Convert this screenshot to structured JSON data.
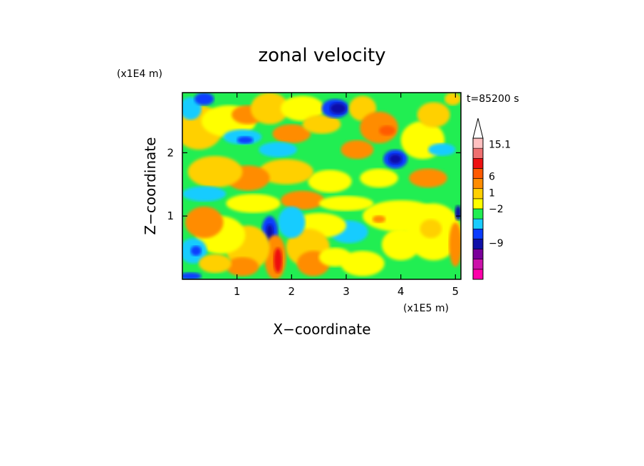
{
  "chart_data": {
    "type": "heatmap",
    "title": "zonal velocity",
    "xlabel": "X−coordinate",
    "ylabel": "Z−coordinate",
    "x_unit": "(x1E5 m)",
    "y_unit": "(x1E4 m)",
    "time_label": "t=85200 s",
    "xlim": [
      0,
      5.1
    ],
    "ylim": [
      0,
      2.95
    ],
    "x_ticks": [
      {
        "value": 1,
        "label": "1"
      },
      {
        "value": 2,
        "label": "2"
      },
      {
        "value": 3,
        "label": "3"
      },
      {
        "value": 4,
        "label": "4"
      },
      {
        "value": 5,
        "label": "5"
      }
    ],
    "y_ticks": [
      {
        "value": 1,
        "label": "1"
      },
      {
        "value": 2,
        "label": "2"
      }
    ],
    "colorbar": {
      "levels": [
        {
          "color": "#ff00aa"
        },
        {
          "color": "#cc11aa"
        },
        {
          "color": "#7a009a"
        },
        {
          "color": "#1010a8"
        },
        {
          "color": "#0a3cff"
        },
        {
          "color": "#19ccff"
        },
        {
          "color": "#21ee52"
        },
        {
          "color": "#ffff00"
        },
        {
          "color": "#ffd000"
        },
        {
          "color": "#ff8c00"
        },
        {
          "color": "#ff5a00"
        },
        {
          "color": "#ee1111"
        },
        {
          "color": "#f07070"
        },
        {
          "color": "#ffc0c0"
        }
      ],
      "labels": [
        {
          "text": "15.1",
          "level": 13.4
        },
        {
          "text": "6",
          "level": 10.2
        },
        {
          "text": "1",
          "level": 8.6
        },
        {
          "text": "−2",
          "level": 7.0
        },
        {
          "text": "−9",
          "level": 3.6
        }
      ]
    },
    "field": {
      "background_color": "#21ee52",
      "blobs": [
        {
          "x": 0.3,
          "z": 2.4,
          "rx": 0.45,
          "rz": 0.35,
          "color": "#ffd000"
        },
        {
          "x": 0.15,
          "z": 2.7,
          "rx": 0.2,
          "rz": 0.18,
          "color": "#19ccff"
        },
        {
          "x": 0.4,
          "z": 2.85,
          "rx": 0.18,
          "rz": 0.1,
          "color": "#0a3cff"
        },
        {
          "x": 0.85,
          "z": 2.5,
          "rx": 0.5,
          "rz": 0.25,
          "color": "#ffff00"
        },
        {
          "x": 1.2,
          "z": 2.6,
          "rx": 0.3,
          "rz": 0.15,
          "color": "#ff8c00"
        },
        {
          "x": 1.1,
          "z": 2.25,
          "rx": 0.35,
          "rz": 0.12,
          "color": "#19ccff"
        },
        {
          "x": 1.15,
          "z": 2.2,
          "rx": 0.15,
          "rz": 0.06,
          "color": "#0a3cff"
        },
        {
          "x": 1.6,
          "z": 2.7,
          "rx": 0.35,
          "rz": 0.25,
          "color": "#ffd000"
        },
        {
          "x": 2.2,
          "z": 2.7,
          "rx": 0.4,
          "rz": 0.2,
          "color": "#ffff00"
        },
        {
          "x": 2.0,
          "z": 2.3,
          "rx": 0.35,
          "rz": 0.15,
          "color": "#ff8c00"
        },
        {
          "x": 1.75,
          "z": 2.05,
          "rx": 0.35,
          "rz": 0.12,
          "color": "#19ccff"
        },
        {
          "x": 2.55,
          "z": 2.45,
          "rx": 0.35,
          "rz": 0.15,
          "color": "#ffd000"
        },
        {
          "x": 2.8,
          "z": 2.7,
          "rx": 0.25,
          "rz": 0.15,
          "color": "#0a3cff"
        },
        {
          "x": 2.85,
          "z": 2.7,
          "rx": 0.15,
          "rz": 0.09,
          "color": "#1010a8"
        },
        {
          "x": 3.3,
          "z": 2.7,
          "rx": 0.25,
          "rz": 0.2,
          "color": "#ffd000"
        },
        {
          "x": 3.6,
          "z": 2.4,
          "rx": 0.35,
          "rz": 0.25,
          "color": "#ff8c00"
        },
        {
          "x": 3.75,
          "z": 2.35,
          "rx": 0.15,
          "rz": 0.08,
          "color": "#ff5a00"
        },
        {
          "x": 3.2,
          "z": 2.05,
          "rx": 0.3,
          "rz": 0.15,
          "color": "#ff8c00"
        },
        {
          "x": 3.9,
          "z": 1.9,
          "rx": 0.22,
          "rz": 0.15,
          "color": "#0a3cff"
        },
        {
          "x": 3.9,
          "z": 1.9,
          "rx": 0.12,
          "rz": 0.08,
          "color": "#1010a8"
        },
        {
          "x": 4.4,
          "z": 2.2,
          "rx": 0.4,
          "rz": 0.3,
          "color": "#ffff00"
        },
        {
          "x": 4.6,
          "z": 2.6,
          "rx": 0.3,
          "rz": 0.2,
          "color": "#ffd000"
        },
        {
          "x": 4.75,
          "z": 2.05,
          "rx": 0.25,
          "rz": 0.1,
          "color": "#19ccff"
        },
        {
          "x": 4.5,
          "z": 1.6,
          "rx": 0.35,
          "rz": 0.15,
          "color": "#ff8c00"
        },
        {
          "x": 3.6,
          "z": 1.6,
          "rx": 0.35,
          "rz": 0.15,
          "color": "#ffff00"
        },
        {
          "x": 2.7,
          "z": 1.55,
          "rx": 0.4,
          "rz": 0.18,
          "color": "#ffff00"
        },
        {
          "x": 1.9,
          "z": 1.7,
          "rx": 0.5,
          "rz": 0.2,
          "color": "#ffd000"
        },
        {
          "x": 1.2,
          "z": 1.6,
          "rx": 0.4,
          "rz": 0.2,
          "color": "#ff8c00"
        },
        {
          "x": 0.6,
          "z": 1.7,
          "rx": 0.5,
          "rz": 0.25,
          "color": "#ffd000"
        },
        {
          "x": 0.4,
          "z": 1.35,
          "rx": 0.4,
          "rz": 0.12,
          "color": "#19ccff"
        },
        {
          "x": 1.3,
          "z": 1.2,
          "rx": 0.5,
          "rz": 0.15,
          "color": "#ffff00"
        },
        {
          "x": 2.2,
          "z": 1.25,
          "rx": 0.4,
          "rz": 0.15,
          "color": "#ff8c00"
        },
        {
          "x": 3.0,
          "z": 1.2,
          "rx": 0.5,
          "rz": 0.12,
          "color": "#ffff00"
        },
        {
          "x": 4.0,
          "z": 1.0,
          "rx": 0.7,
          "rz": 0.25,
          "color": "#ffff00"
        },
        {
          "x": 4.6,
          "z": 0.75,
          "rx": 0.5,
          "rz": 0.45,
          "color": "#ffff00"
        },
        {
          "x": 4.55,
          "z": 0.8,
          "rx": 0.2,
          "rz": 0.15,
          "color": "#ffd000"
        },
        {
          "x": 4.0,
          "z": 0.55,
          "rx": 0.35,
          "rz": 0.25,
          "color": "#ffff00"
        },
        {
          "x": 3.3,
          "z": 0.25,
          "rx": 0.4,
          "rz": 0.2,
          "color": "#ffff00"
        },
        {
          "x": 3.6,
          "z": 0.95,
          "rx": 0.12,
          "rz": 0.06,
          "color": "#ff8c00"
        },
        {
          "x": 3.05,
          "z": 0.75,
          "rx": 0.35,
          "rz": 0.18,
          "color": "#19ccff"
        },
        {
          "x": 2.5,
          "z": 0.85,
          "rx": 0.5,
          "rz": 0.2,
          "color": "#ffff00"
        },
        {
          "x": 2.3,
          "z": 0.5,
          "rx": 0.4,
          "rz": 0.3,
          "color": "#ffd000"
        },
        {
          "x": 2.4,
          "z": 0.25,
          "rx": 0.3,
          "rz": 0.2,
          "color": "#ff8c00"
        },
        {
          "x": 2.8,
          "z": 0.35,
          "rx": 0.3,
          "rz": 0.15,
          "color": "#ffff00"
        },
        {
          "x": 2.0,
          "z": 0.9,
          "rx": 0.25,
          "rz": 0.25,
          "color": "#19ccff"
        },
        {
          "x": 1.6,
          "z": 0.75,
          "rx": 0.15,
          "rz": 0.25,
          "color": "#0a3cff"
        },
        {
          "x": 1.6,
          "z": 0.72,
          "rx": 0.07,
          "rz": 0.15,
          "color": "#1010a8"
        },
        {
          "x": 1.7,
          "z": 0.35,
          "rx": 0.2,
          "rz": 0.35,
          "color": "#ff8c00"
        },
        {
          "x": 1.75,
          "z": 0.3,
          "rx": 0.08,
          "rz": 0.2,
          "color": "#ee1111"
        },
        {
          "x": 1.2,
          "z": 0.5,
          "rx": 0.4,
          "rz": 0.35,
          "color": "#ffd000"
        },
        {
          "x": 1.1,
          "z": 0.2,
          "rx": 0.3,
          "rz": 0.15,
          "color": "#ff8c00"
        },
        {
          "x": 0.7,
          "z": 0.7,
          "rx": 0.45,
          "rz": 0.3,
          "color": "#ffff00"
        },
        {
          "x": 0.4,
          "z": 0.9,
          "rx": 0.35,
          "rz": 0.25,
          "color": "#ff8c00"
        },
        {
          "x": 0.2,
          "z": 0.45,
          "rx": 0.25,
          "rz": 0.2,
          "color": "#19ccff"
        },
        {
          "x": 0.25,
          "z": 0.45,
          "rx": 0.1,
          "rz": 0.08,
          "color": "#0a3cff"
        },
        {
          "x": 0.6,
          "z": 0.25,
          "rx": 0.3,
          "rz": 0.15,
          "color": "#ffd000"
        },
        {
          "x": 0.15,
          "z": 0.05,
          "rx": 0.2,
          "rz": 0.06,
          "color": "#0a3cff"
        },
        {
          "x": 5.0,
          "z": 0.55,
          "rx": 0.12,
          "rz": 0.35,
          "color": "#ff8c00"
        },
        {
          "x": 5.05,
          "z": 1.05,
          "rx": 0.06,
          "rz": 0.12,
          "color": "#1010a8"
        },
        {
          "x": 4.95,
          "z": 2.85,
          "rx": 0.15,
          "rz": 0.1,
          "color": "#ffd000"
        }
      ]
    }
  }
}
